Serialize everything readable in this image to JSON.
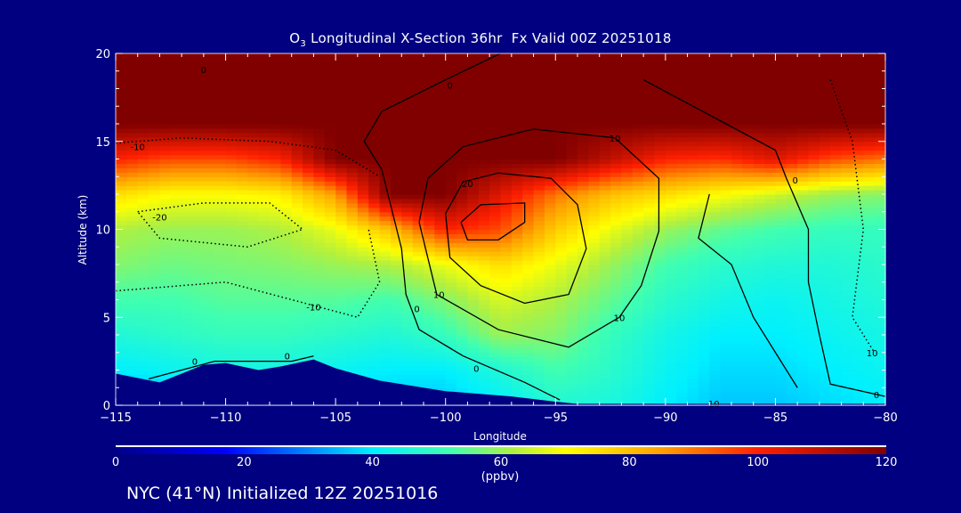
{
  "chart_data": {
    "type": "heatmap",
    "title_prefix": "O",
    "title_sub": "3",
    "title_rest": " Longitudinal X-Section 36hr  Fx Valid 00Z 20251018",
    "xlabel": "Longitude",
    "ylabel": "Altitude (km)",
    "xlim": [
      -115,
      -80
    ],
    "ylim": [
      0,
      20
    ],
    "x_ticks": [
      "-115",
      "-110",
      "-105",
      "-100",
      "-95",
      "-90",
      "-85",
      "-80"
    ],
    "y_ticks": [
      "0",
      "5",
      "10",
      "15",
      "20"
    ],
    "grid_lon": [
      -115,
      -112.5,
      -110,
      -107.5,
      -105,
      -102.5,
      -100,
      -97.5,
      -95,
      -92.5,
      -90,
      -87.5,
      -85,
      -82.5,
      -80
    ],
    "grid_alt": [
      0,
      2,
      4,
      6,
      8,
      10,
      12,
      14,
      16,
      18,
      20
    ],
    "ozone_ppbv": [
      [
        30,
        32,
        34,
        36,
        36,
        36,
        36,
        40,
        46,
        45,
        40,
        36,
        36,
        38,
        40
      ],
      [
        40,
        42,
        44,
        44,
        42,
        40,
        40,
        46,
        52,
        48,
        42,
        38,
        38,
        40,
        42
      ],
      [
        46,
        48,
        50,
        50,
        48,
        46,
        50,
        60,
        58,
        50,
        44,
        40,
        40,
        42,
        44
      ],
      [
        52,
        52,
        54,
        54,
        54,
        52,
        58,
        66,
        62,
        55,
        48,
        44,
        42,
        44,
        46
      ],
      [
        58,
        56,
        57,
        58,
        60,
        62,
        68,
        75,
        68,
        60,
        52,
        48,
        46,
        46,
        48
      ],
      [
        62,
        60,
        60,
        62,
        68,
        80,
        100,
        95,
        78,
        68,
        60,
        55,
        52,
        50,
        50
      ],
      [
        75,
        70,
        70,
        72,
        85,
        120,
        120,
        105,
        90,
        80,
        75,
        70,
        65,
        60,
        58
      ],
      [
        100,
        95,
        95,
        100,
        120,
        120,
        120,
        120,
        120,
        110,
        100,
        98,
        105,
        95,
        90
      ],
      [
        120,
        120,
        120,
        120,
        120,
        120,
        120,
        120,
        120,
        120,
        120,
        120,
        120,
        120,
        120
      ],
      [
        120,
        120,
        120,
        120,
        120,
        120,
        120,
        120,
        120,
        120,
        120,
        120,
        120,
        120,
        120
      ],
      [
        120,
        120,
        120,
        120,
        120,
        120,
        120,
        120,
        120,
        120,
        120,
        120,
        120,
        120,
        120
      ]
    ],
    "terrain": [
      [
        -115,
        1.8
      ],
      [
        -113,
        1.3
      ],
      [
        -111,
        2.3
      ],
      [
        -110,
        2.4
      ],
      [
        -108.5,
        2.0
      ],
      [
        -107.5,
        2.2
      ],
      [
        -106,
        2.6
      ],
      [
        -105,
        2.1
      ],
      [
        -103,
        1.4
      ],
      [
        -100,
        0.8
      ],
      [
        -97,
        0.5
      ],
      [
        -95,
        0.2
      ],
      [
        -94,
        0.08
      ],
      [
        -80,
        0.08
      ],
      [
        -80,
        0
      ],
      [
        -115,
        0
      ]
    ],
    "contours": [
      {
        "style": "solid",
        "points": [
          [
            -97.5,
            20
          ],
          [
            -100,
            18.5
          ],
          [
            -102.9,
            16.7
          ],
          [
            -103.7,
            15
          ],
          [
            -102.9,
            13.4
          ],
          [
            -102.5,
            11.4
          ],
          [
            -102,
            8.9
          ],
          [
            -101.8,
            6.3
          ],
          [
            -101.2,
            4.3
          ],
          [
            -99.2,
            2.8
          ],
          [
            -96.4,
            1.3
          ],
          [
            -94.8,
            0.3
          ]
        ]
      },
      {
        "style": "solid",
        "points": [
          [
            -101.2,
            10.4
          ],
          [
            -100.8,
            12.9
          ],
          [
            -99.2,
            14.7
          ],
          [
            -96,
            15.7
          ],
          [
            -92.3,
            15.2
          ],
          [
            -90.3,
            12.9
          ],
          [
            -90.3,
            9.9
          ],
          [
            -91.1,
            6.8
          ],
          [
            -92.1,
            5
          ],
          [
            -94.4,
            3.3
          ],
          [
            -97.6,
            4.3
          ],
          [
            -100.4,
            6.3
          ],
          [
            -101.2,
            10.4
          ]
        ]
      },
      {
        "style": "solid",
        "points": [
          [
            -100,
            10.9
          ],
          [
            -99.2,
            12.7
          ],
          [
            -97.6,
            13.2
          ],
          [
            -95.2,
            12.9
          ],
          [
            -94,
            11.4
          ],
          [
            -93.6,
            8.9
          ],
          [
            -94.4,
            6.3
          ],
          [
            -96.4,
            5.8
          ],
          [
            -98.4,
            6.8
          ],
          [
            -99.8,
            8.4
          ],
          [
            -100,
            10.9
          ]
        ]
      },
      {
        "style": "solid",
        "points": [
          [
            -99.3,
            10.4
          ],
          [
            -98.4,
            11.4
          ],
          [
            -96.4,
            11.5
          ],
          [
            -96.4,
            10.4
          ],
          [
            -97.6,
            9.4
          ],
          [
            -99,
            9.4
          ],
          [
            -99.3,
            10.4
          ]
        ]
      },
      {
        "style": "solid",
        "points": [
          [
            -91,
            18.5
          ],
          [
            -88,
            16.5
          ],
          [
            -85,
            14.5
          ],
          [
            -84.5,
            12.9
          ],
          [
            -83.5,
            10
          ],
          [
            -83.5,
            7
          ],
          [
            -83,
            4
          ],
          [
            -82.5,
            1.2
          ],
          [
            -80,
            0.5
          ]
        ]
      },
      {
        "style": "solid",
        "points": [
          [
            -88,
            12
          ],
          [
            -88.5,
            9.5
          ],
          [
            -87,
            8
          ],
          [
            -86,
            5
          ],
          [
            -85,
            3
          ],
          [
            -84,
            1
          ]
        ]
      },
      {
        "style": "solid",
        "points": [
          [
            -113.5,
            1.5
          ],
          [
            -110.5,
            2.5
          ],
          [
            -107,
            2.5
          ],
          [
            -106,
            2.8
          ]
        ]
      },
      {
        "style": "dotted",
        "points": [
          [
            -115,
            14.9
          ],
          [
            -112,
            15.2
          ],
          [
            -108,
            15
          ],
          [
            -105,
            14.5
          ],
          [
            -103,
            13
          ]
        ]
      },
      {
        "style": "dotted",
        "points": [
          [
            -114,
            11
          ],
          [
            -111,
            11.5
          ],
          [
            -108,
            11.5
          ],
          [
            -106.5,
            10
          ],
          [
            -109,
            9
          ],
          [
            -113,
            9.5
          ],
          [
            -114,
            11
          ]
        ]
      },
      {
        "style": "dotted",
        "points": [
          [
            -115,
            6.5
          ],
          [
            -110,
            7
          ],
          [
            -107,
            6
          ],
          [
            -104,
            5
          ],
          [
            -103,
            7
          ],
          [
            -103.5,
            10
          ]
        ]
      },
      {
        "style": "dotted",
        "points": [
          [
            -82.5,
            18.5
          ],
          [
            -81.5,
            15
          ],
          [
            -81,
            10
          ],
          [
            -81.5,
            5
          ],
          [
            -80.5,
            3
          ]
        ]
      }
    ],
    "contour_labels": [
      {
        "text": "0",
        "lon": -111.4,
        "alt": 2.5
      },
      {
        "text": "0",
        "lon": -107.2,
        "alt": 2.8
      },
      {
        "text": "-10",
        "lon": -114,
        "alt": 14.7
      },
      {
        "text": "-20",
        "lon": -113,
        "alt": 10.7
      },
      {
        "text": "-10",
        "lon": -106,
        "alt": 5.6
      },
      {
        "text": "0",
        "lon": -111,
        "alt": 19.1
      },
      {
        "text": "0",
        "lon": -99.8,
        "alt": 18.2
      },
      {
        "text": "10",
        "lon": -92.3,
        "alt": 15.2
      },
      {
        "text": "20",
        "lon": -99,
        "alt": 12.6
      },
      {
        "text": "10",
        "lon": -100.3,
        "alt": 6.3
      },
      {
        "text": "0",
        "lon": -101.3,
        "alt": 5.5
      },
      {
        "text": "0",
        "lon": -98.6,
        "alt": 2.1
      },
      {
        "text": "10",
        "lon": -92.1,
        "alt": 5
      },
      {
        "text": "0",
        "lon": -84.1,
        "alt": 12.8
      },
      {
        "text": "10",
        "lon": -80.6,
        "alt": 3
      },
      {
        "text": "0",
        "lon": -80.4,
        "alt": 0.6
      },
      {
        "text": "10",
        "lon": -87.8,
        "alt": 0.1
      }
    ],
    "colorbar": {
      "ticks": [
        "0",
        "20",
        "40",
        "60",
        "80",
        "100",
        "120"
      ],
      "unit": "(ppbv)",
      "range": [
        0,
        120
      ]
    }
  },
  "footer": "NYC (41°N) Initialized 12Z 20251016"
}
